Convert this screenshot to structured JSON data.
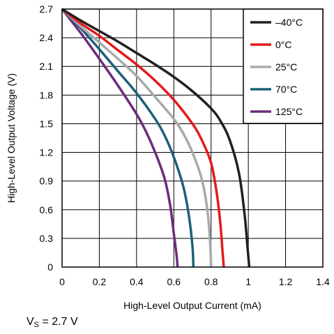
{
  "chart_data": {
    "type": "line",
    "title": "",
    "xlabel": "High-Level Output Current (mA)",
    "ylabel": "High-Level Output Voltage (V)",
    "xlim": [
      0,
      1.4
    ],
    "ylim": [
      0,
      2.7
    ],
    "xticks": [
      "0",
      "0.2",
      "0.4",
      "0.6",
      "0.8",
      "1",
      "1.2",
      "1.4"
    ],
    "yticks": [
      "0",
      "0.3",
      "0.6",
      "0.9",
      "1.2",
      "1.5",
      "1.8",
      "2.1",
      "2.4",
      "2.7"
    ],
    "grid": true,
    "legend_position": "top-right",
    "series": [
      {
        "name": "–40°C",
        "color": "#231f20",
        "points": [
          [
            0,
            2.7
          ],
          [
            0.1,
            2.58
          ],
          [
            0.2,
            2.47
          ],
          [
            0.3,
            2.36
          ],
          [
            0.4,
            2.24
          ],
          [
            0.5,
            2.12
          ],
          [
            0.6,
            1.99
          ],
          [
            0.7,
            1.84
          ],
          [
            0.8,
            1.66
          ],
          [
            0.85,
            1.53
          ],
          [
            0.9,
            1.33
          ],
          [
            0.95,
            0.98
          ],
          [
            0.98,
            0.55
          ],
          [
            0.995,
            0.22
          ],
          [
            1.005,
            0
          ]
        ]
      },
      {
        "name": "0°C",
        "color": "#e31a1c",
        "points": [
          [
            0,
            2.7
          ],
          [
            0.1,
            2.55
          ],
          [
            0.2,
            2.42
          ],
          [
            0.3,
            2.27
          ],
          [
            0.4,
            2.12
          ],
          [
            0.5,
            1.95
          ],
          [
            0.6,
            1.75
          ],
          [
            0.7,
            1.5
          ],
          [
            0.75,
            1.33
          ],
          [
            0.8,
            1.09
          ],
          [
            0.83,
            0.78
          ],
          [
            0.85,
            0.45
          ],
          [
            0.862,
            0.15
          ],
          [
            0.868,
            0
          ]
        ]
      },
      {
        "name": "25°C",
        "color": "#a7a9ac",
        "points": [
          [
            0,
            2.7
          ],
          [
            0.1,
            2.52
          ],
          [
            0.2,
            2.35
          ],
          [
            0.3,
            2.18
          ],
          [
            0.4,
            2.0
          ],
          [
            0.5,
            1.78
          ],
          [
            0.6,
            1.55
          ],
          [
            0.65,
            1.4
          ],
          [
            0.7,
            1.2
          ],
          [
            0.75,
            0.92
          ],
          [
            0.78,
            0.6
          ],
          [
            0.795,
            0.25
          ],
          [
            0.8,
            0
          ]
        ]
      },
      {
        "name": "70°C",
        "color": "#1f5f7a",
        "points": [
          [
            0,
            2.7
          ],
          [
            0.1,
            2.5
          ],
          [
            0.2,
            2.28
          ],
          [
            0.3,
            2.05
          ],
          [
            0.4,
            1.82
          ],
          [
            0.5,
            1.55
          ],
          [
            0.55,
            1.38
          ],
          [
            0.6,
            1.15
          ],
          [
            0.65,
            0.85
          ],
          [
            0.68,
            0.55
          ],
          [
            0.7,
            0.22
          ],
          [
            0.705,
            0
          ]
        ]
      },
      {
        "name": "125°C",
        "color": "#6b2c7b",
        "points": [
          [
            0,
            2.7
          ],
          [
            0.1,
            2.45
          ],
          [
            0.2,
            2.18
          ],
          [
            0.3,
            1.9
          ],
          [
            0.4,
            1.6
          ],
          [
            0.45,
            1.42
          ],
          [
            0.5,
            1.2
          ],
          [
            0.55,
            0.93
          ],
          [
            0.58,
            0.65
          ],
          [
            0.6,
            0.35
          ],
          [
            0.615,
            0.12
          ],
          [
            0.62,
            0
          ]
        ]
      }
    ]
  },
  "note": {
    "prefix": "V",
    "subscript": "S",
    "suffix": " = 2.7 V"
  }
}
